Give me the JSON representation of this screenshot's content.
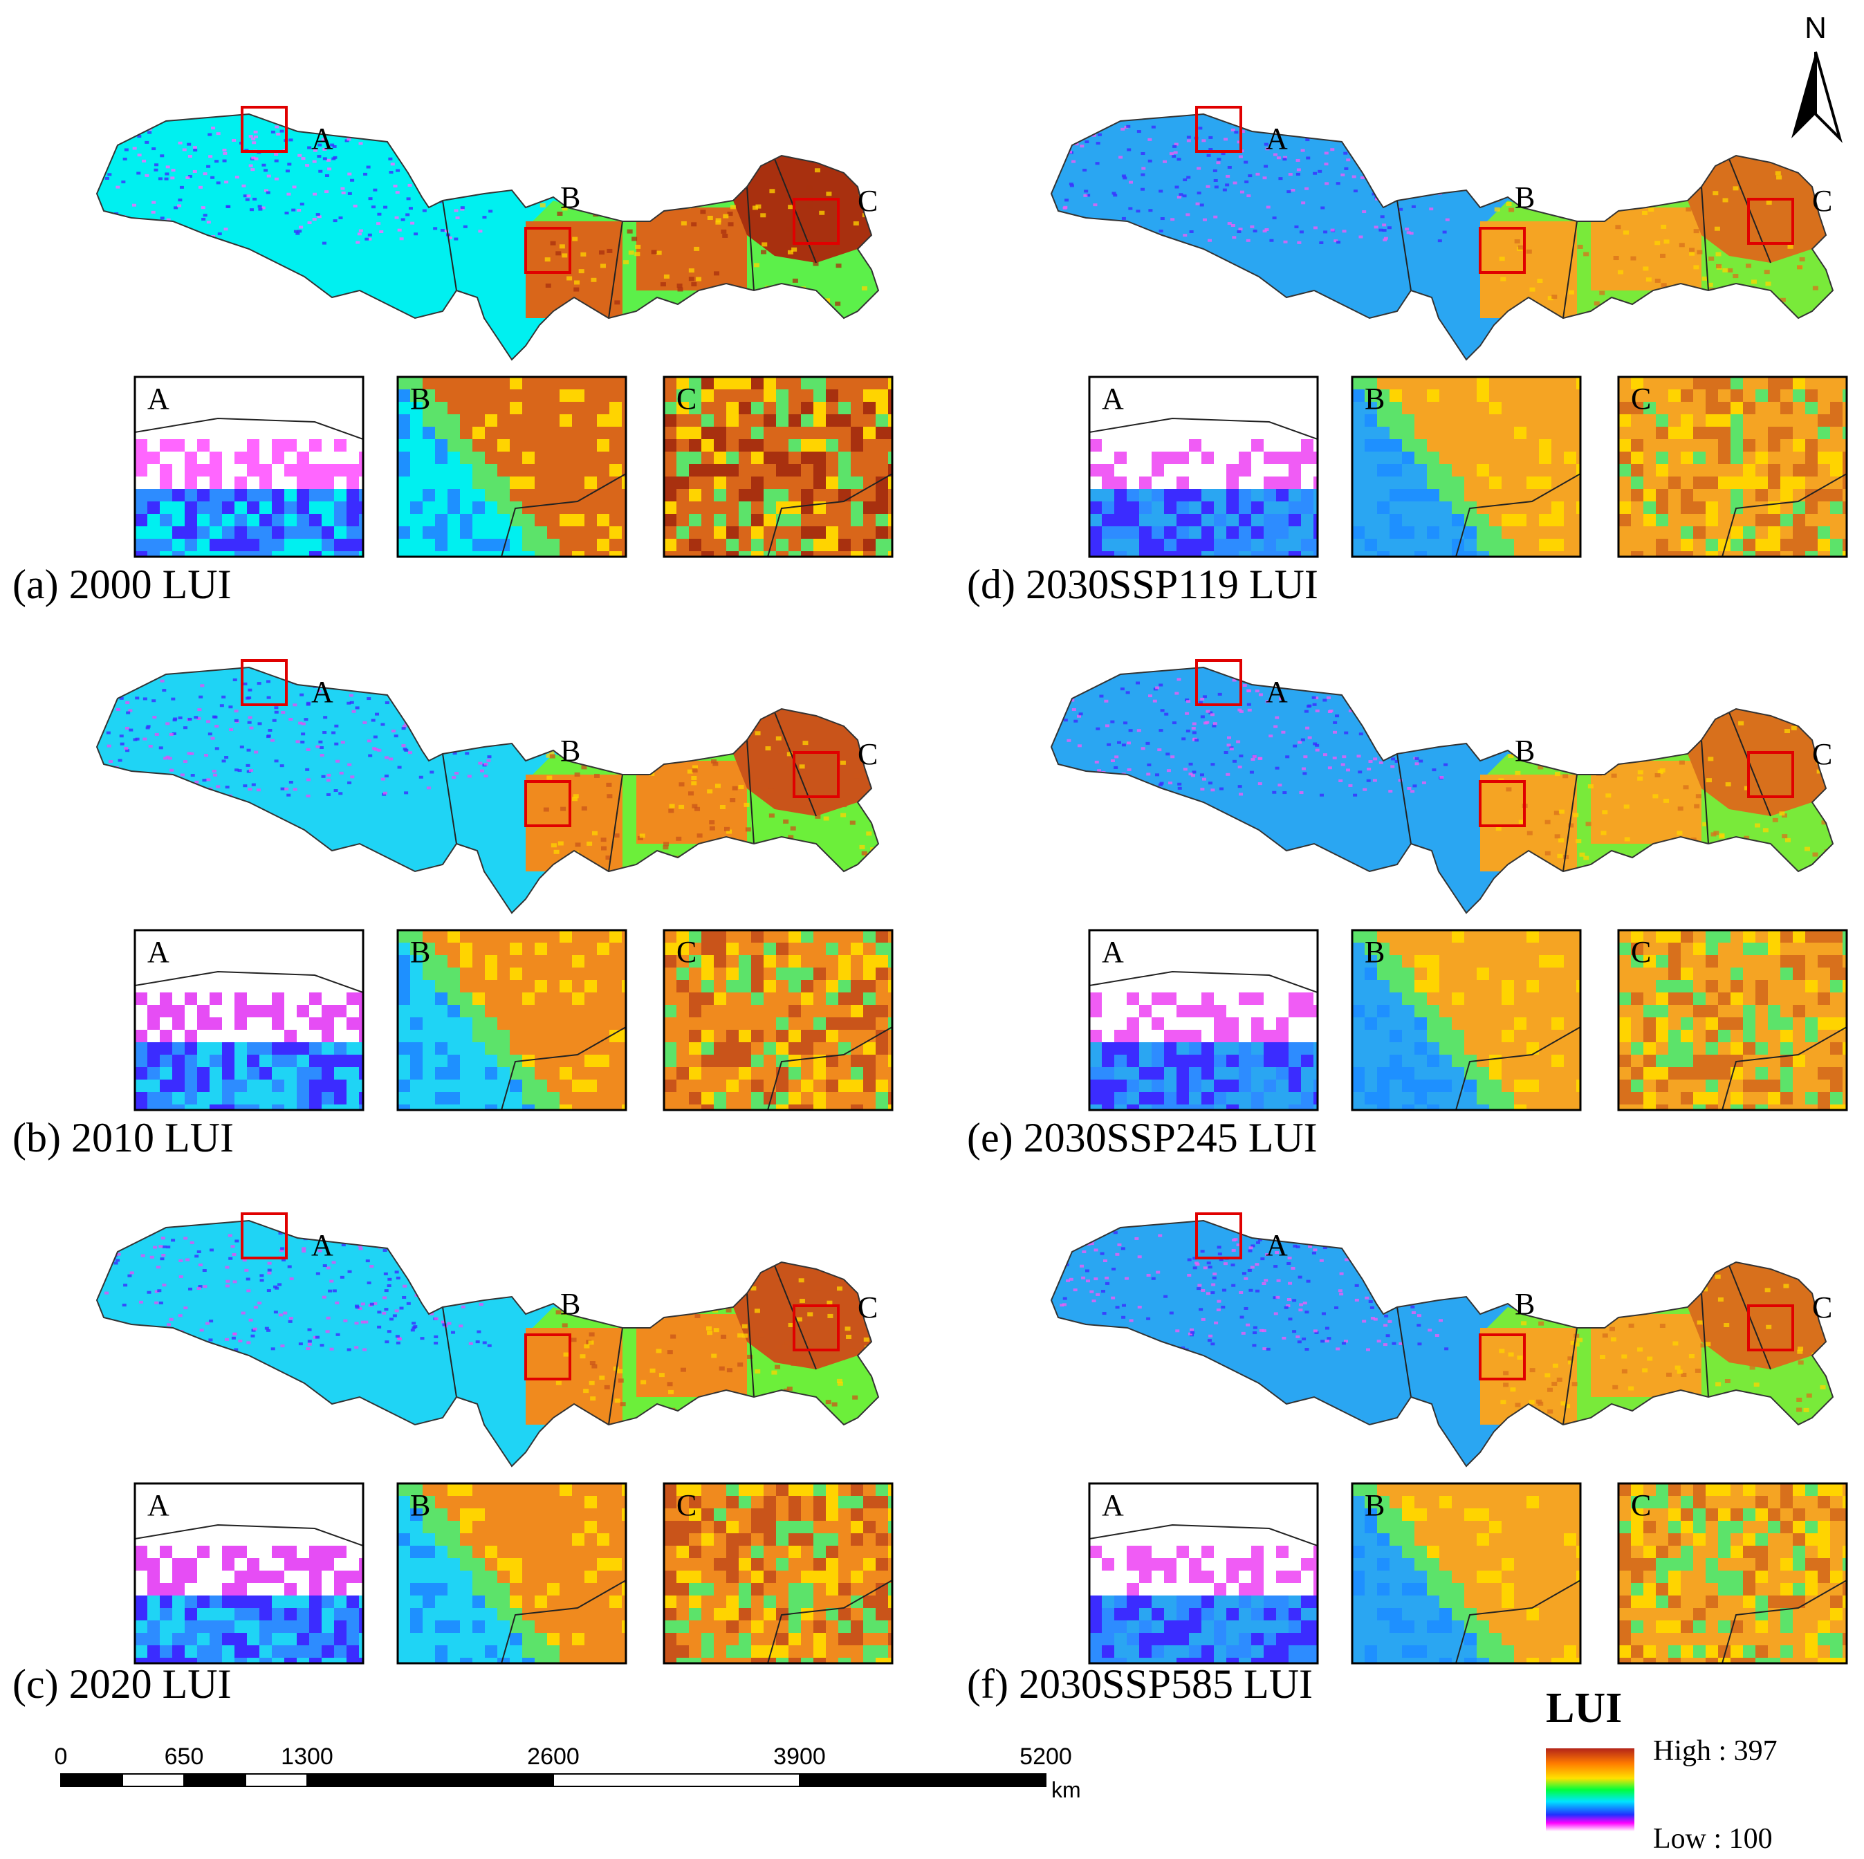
{
  "panels": [
    {
      "id": "a",
      "title": "(a) 2000 LUI",
      "theme": "high",
      "inset_a": "A",
      "inset_b": "B",
      "inset_c": "C",
      "region_a": "A",
      "region_b": "B",
      "region_c": "C"
    },
    {
      "id": "d",
      "title": "(d) 2030SSP119 LUI",
      "theme": "future",
      "inset_a": "A",
      "inset_b": "B",
      "inset_c": "C",
      "region_a": "A",
      "region_b": "B",
      "region_c": "C"
    },
    {
      "id": "b",
      "title": "(b) 2010 LUI",
      "theme": "mid",
      "inset_a": "A",
      "inset_b": "B",
      "inset_c": "C",
      "region_a": "A",
      "region_b": "B",
      "region_c": "C"
    },
    {
      "id": "e",
      "title": "(e) 2030SSP245 LUI",
      "theme": "future",
      "inset_a": "A",
      "inset_b": "B",
      "inset_c": "C",
      "region_a": "A",
      "region_b": "B",
      "region_c": "C"
    },
    {
      "id": "c",
      "title": "(c) 2020 LUI",
      "theme": "mid",
      "inset_a": "A",
      "inset_b": "B",
      "inset_c": "C",
      "region_a": "A",
      "region_b": "B",
      "region_c": "C"
    },
    {
      "id": "f",
      "title": "(f) 2030SSP585 LUI",
      "theme": "future",
      "inset_a": "A",
      "inset_b": "B",
      "inset_c": "C",
      "region_a": "A",
      "region_b": "B",
      "region_c": "C"
    }
  ],
  "scale_bar": {
    "ticks": [
      "0",
      "650",
      "1300",
      "2600",
      "3900",
      "5200"
    ],
    "tick_values": [
      0,
      650,
      1300,
      2600,
      3900,
      5200
    ],
    "unit": "km"
  },
  "north_arrow": {
    "label": "N"
  },
  "legend": {
    "title": "LUI",
    "high_label": "High : 397",
    "low_label": "Low : 100",
    "high_value": 397,
    "low_value": 100,
    "ramp_colors": [
      "#c0392b",
      "#ff6a00",
      "#ffd400",
      "#00ff40",
      "#00e5ff",
      "#1e3cff",
      "#ff00ff",
      "#ffffff"
    ]
  }
}
